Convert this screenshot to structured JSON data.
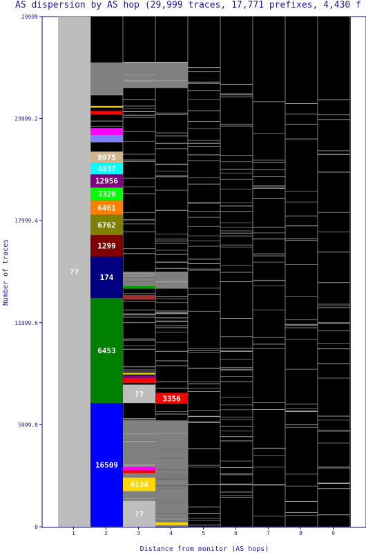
{
  "chart_data": {
    "type": "bar",
    "title": "AS dispersion by AS hop (29,999 traces, 17,771 prefixes, 4,430 f",
    "xlabel": "Distance from monitor (AS hops)",
    "ylabel": "Number of traces",
    "ylim": [
      0,
      29999
    ],
    "yticks": [
      "0",
      "5999.8",
      "11999.6",
      "17999.4",
      "23999.2",
      "29999"
    ],
    "xticks": [
      "1",
      "2",
      "3",
      "4",
      "5",
      "6",
      "7",
      "8",
      "9"
    ],
    "bands": [
      {
        "hop": 1,
        "y0": 0,
        "y1": 29999,
        "color": "#bdbdbd",
        "label": "??"
      },
      {
        "hop": 2,
        "y0": 0,
        "y1": 7270,
        "color": "#0000ff",
        "label": "16509"
      },
      {
        "hop": 2,
        "y0": 7270,
        "y1": 13460,
        "color": "#008000",
        "label": "6453"
      },
      {
        "hop": 2,
        "y0": 13460,
        "y1": 15900,
        "color": "#000080",
        "label": "174"
      },
      {
        "hop": 2,
        "y0": 15900,
        "y1": 17150,
        "color": "#800000",
        "label": "1299"
      },
      {
        "hop": 2,
        "y0": 17150,
        "y1": 18350,
        "color": "#808000",
        "label": "6762"
      },
      {
        "hop": 2,
        "y0": 18350,
        "y1": 19180,
        "color": "#ff8000",
        "label": "6461"
      },
      {
        "hop": 2,
        "y0": 19180,
        "y1": 19950,
        "color": "#00ff00",
        "label": "3320"
      },
      {
        "hop": 2,
        "y0": 19950,
        "y1": 20720,
        "color": "#800080",
        "label": "12956"
      },
      {
        "hop": 2,
        "y0": 20720,
        "y1": 21380,
        "color": "#00ffff",
        "label": "4837"
      },
      {
        "hop": 2,
        "y0": 21380,
        "y1": 22060,
        "color": "#d2b48c",
        "label": "8075"
      },
      {
        "hop": 2,
        "y0": 22600,
        "y1": 23050,
        "color": "#8080ff",
        "label": ""
      },
      {
        "hop": 2,
        "y0": 23050,
        "y1": 23450,
        "color": "#ff00ff",
        "label": ""
      },
      {
        "hop": 2,
        "y0": 24250,
        "y1": 24450,
        "color": "#ff0000",
        "label": ""
      },
      {
        "hop": 2,
        "y0": 24650,
        "y1": 24750,
        "color": "#ffd700",
        "label": ""
      },
      {
        "hop": 3,
        "y0": 0,
        "y1": 1000,
        "color": "#000000",
        "label": ""
      },
      {
        "hop": 3,
        "y0": 0,
        "y1": 1520,
        "color": "#bdbdbd",
        "label": "??"
      },
      {
        "hop": 3,
        "y0": 2100,
        "y1": 2890,
        "color": "#ffd700",
        "label": "4134"
      },
      {
        "hop": 3,
        "y0": 3150,
        "y1": 3320,
        "color": "#ff0000",
        "label": ""
      },
      {
        "hop": 3,
        "y0": 3320,
        "y1": 3500,
        "color": "#ff00ff",
        "label": ""
      },
      {
        "hop": 3,
        "y0": 7270,
        "y1": 8350,
        "color": "#bdbdbd",
        "label": "??"
      },
      {
        "hop": 3,
        "y0": 8450,
        "y1": 8750,
        "color": "#ff0000",
        "label": ""
      },
      {
        "hop": 3,
        "y0": 8750,
        "y1": 8900,
        "color": "#800080",
        "label": ""
      },
      {
        "hop": 3,
        "y0": 8950,
        "y1": 9050,
        "color": "#ffd700",
        "label": ""
      },
      {
        "hop": 3,
        "y0": 13350,
        "y1": 13600,
        "color": "#a03030",
        "label": ""
      },
      {
        "hop": 3,
        "y0": 14000,
        "y1": 14150,
        "color": "#00a000",
        "label": ""
      },
      {
        "hop": 4,
        "y0": 7230,
        "y1": 7870,
        "color": "#ff0000",
        "label": "3356"
      },
      {
        "hop": 4,
        "y0": 100,
        "y1": 250,
        "color": "#ffd700",
        "label": ""
      }
    ],
    "grey_regions": [
      {
        "hop": 2,
        "y0": 25400,
        "y1": 27300
      },
      {
        "hop": 3,
        "y0": 25800,
        "y1": 27300
      },
      {
        "hop": 4,
        "y0": 25800,
        "y1": 27300
      },
      {
        "hop": 3,
        "y0": 1520,
        "y1": 6250
      },
      {
        "hop": 4,
        "y0": 0,
        "y1": 6250
      },
      {
        "hop": 3,
        "y0": 14000,
        "y1": 15000
      },
      {
        "hop": 4,
        "y0": 14000,
        "y1": 15000
      }
    ]
  }
}
